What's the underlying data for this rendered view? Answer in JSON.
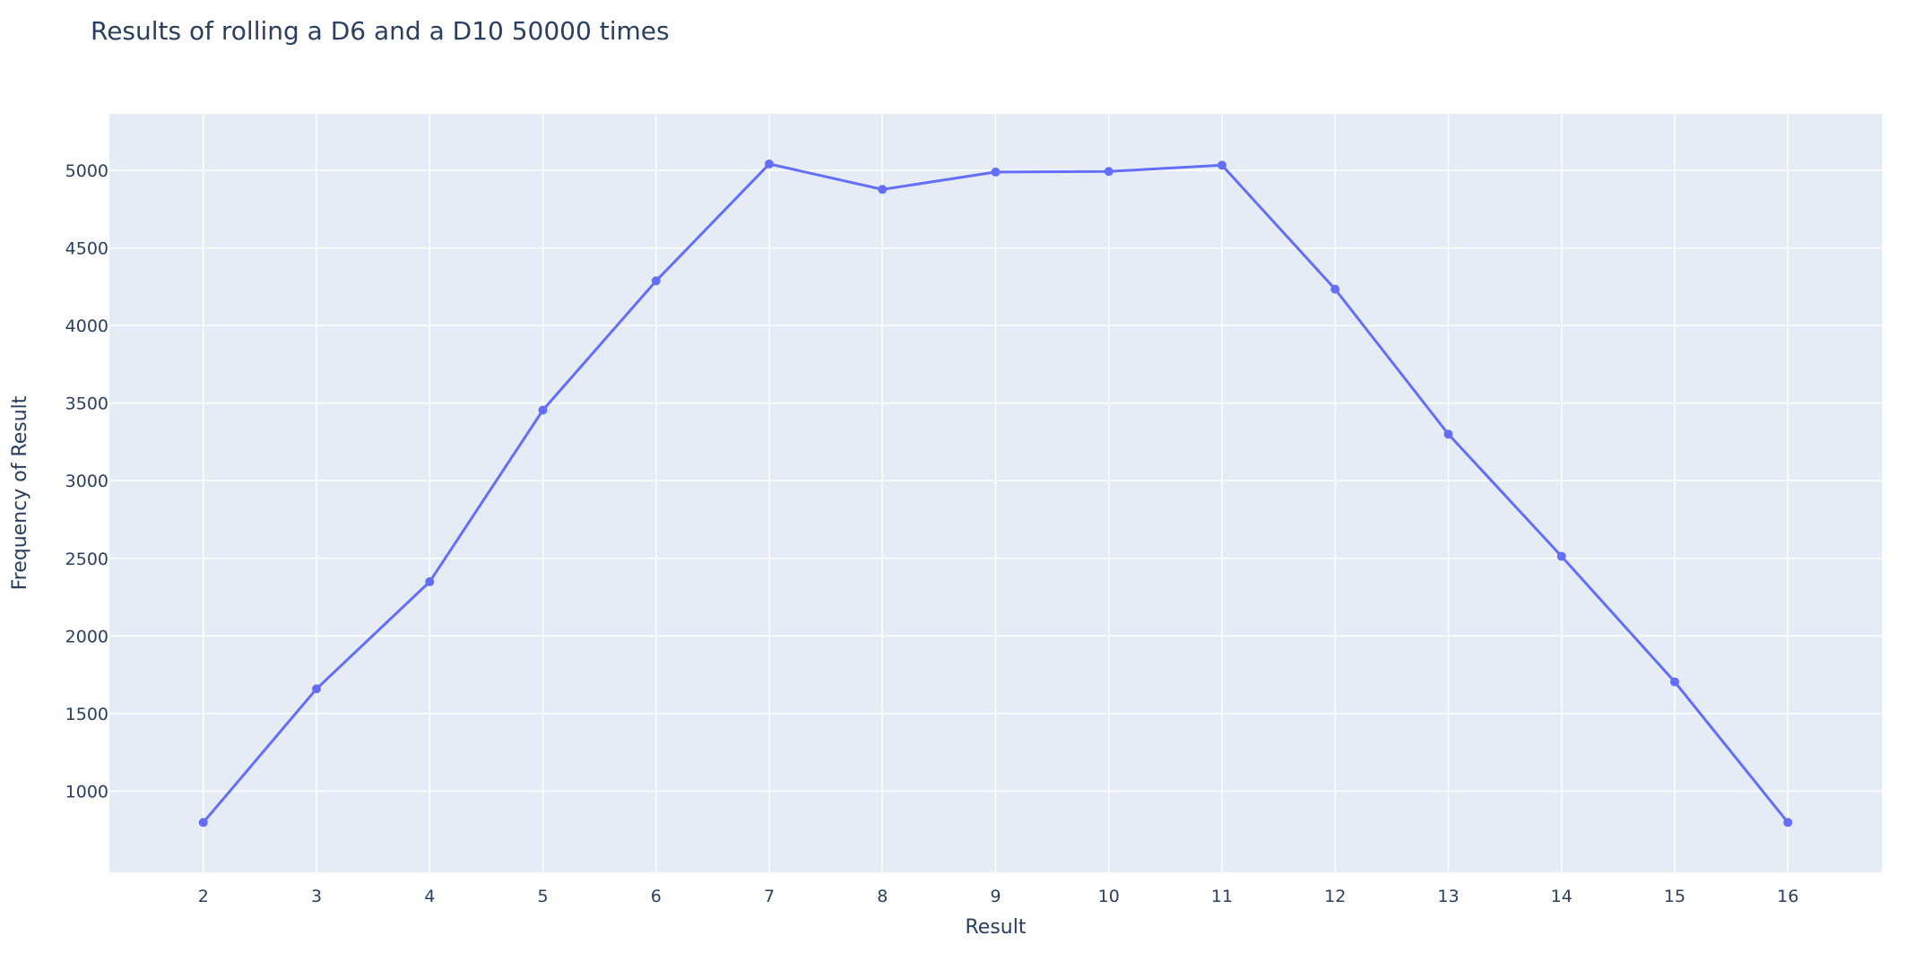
{
  "chart_data": {
    "type": "line",
    "title": "Results of rolling a D6 and a D10 50000 times",
    "xlabel": "Result",
    "ylabel": "Frequency of Result",
    "x": [
      2,
      3,
      4,
      5,
      6,
      7,
      8,
      9,
      10,
      11,
      12,
      13,
      14,
      15,
      16
    ],
    "series": [
      {
        "values": [
          798,
          1659,
          2349,
          3455,
          4288,
          5041,
          4877,
          4989,
          4993,
          5033,
          4234,
          3300,
          2513,
          1704,
          798
        ]
      }
    ],
    "xlim": [
      1.17,
      16.83
    ],
    "ylim": [
      477,
      5364
    ],
    "x_ticks": [
      2,
      3,
      4,
      5,
      6,
      7,
      8,
      9,
      10,
      11,
      12,
      13,
      14,
      15,
      16
    ],
    "y_ticks": [
      1000,
      1500,
      2000,
      2500,
      3000,
      3500,
      4000,
      4500,
      5000
    ],
    "grid": true,
    "legend": "none",
    "colors": {
      "line": "#636efa",
      "plot_background": "#e5ecf6",
      "grid": "#ffffff",
      "text": "#2a3f5f"
    }
  }
}
